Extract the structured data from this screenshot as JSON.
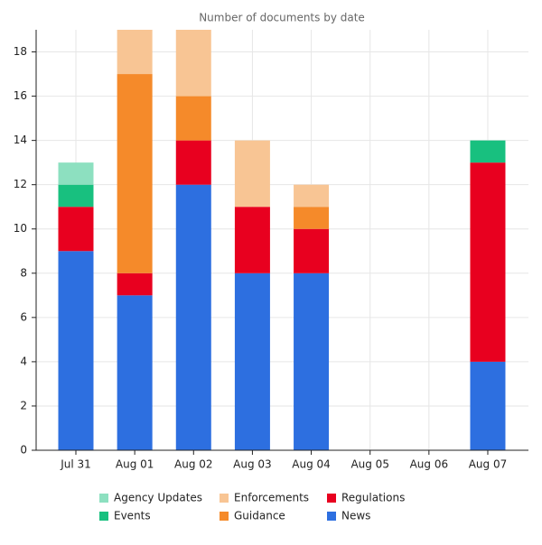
{
  "chart_data": {
    "type": "stacked_bar",
    "title": "Number of documents by date",
    "categories": [
      "Jul 31",
      "Aug 01",
      "Aug 02",
      "Aug 03",
      "Aug 04",
      "Aug 05",
      "Aug 06",
      "Aug 07"
    ],
    "series": [
      {
        "name": "News",
        "color": "#2d6fe0",
        "values": [
          9,
          7,
          12,
          8,
          8,
          0,
          0,
          4
        ]
      },
      {
        "name": "Regulations",
        "color": "#e8001f",
        "values": [
          2,
          1,
          2,
          3,
          2,
          0,
          0,
          9
        ]
      },
      {
        "name": "Guidance",
        "color": "#f58a2a",
        "values": [
          0,
          9,
          2,
          0,
          1,
          0,
          0,
          0
        ]
      },
      {
        "name": "Enforcements",
        "color": "#f8c594",
        "values": [
          0,
          2,
          3,
          3,
          1,
          0,
          0,
          0
        ]
      },
      {
        "name": "Events",
        "color": "#18c07f",
        "values": [
          1,
          0,
          0,
          0,
          0,
          0,
          0,
          1
        ]
      },
      {
        "name": "Agency Updates",
        "color": "#8de0c0",
        "values": [
          1,
          0,
          0,
          0,
          0,
          0,
          0,
          0
        ]
      }
    ],
    "ylim": [
      0,
      19
    ],
    "yticks": [
      0,
      2,
      4,
      6,
      8,
      10,
      12,
      14,
      16,
      18
    ],
    "grid": true,
    "legend": "bottom"
  }
}
